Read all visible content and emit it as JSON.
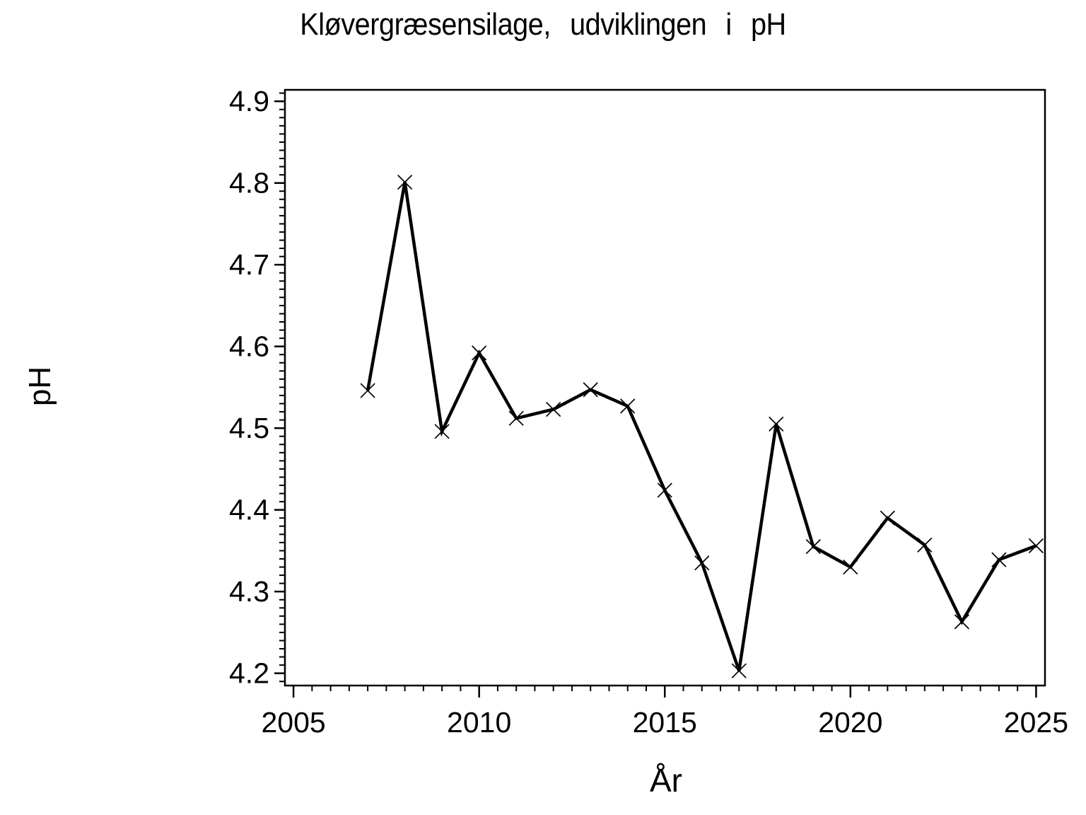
{
  "title": "Kløvergræsensilage, udviklingen i pH",
  "colors": {
    "foreground": "#000000",
    "background": "#FFFFFF"
  },
  "chart_data": {
    "type": "line",
    "title": "Kløvergræsensilage, udviklingen i pH",
    "xlabel": "År",
    "ylabel": "pH",
    "x": [
      2007,
      2008,
      2009,
      2010,
      2011,
      2012,
      2013,
      2014,
      2015,
      2016,
      2017,
      2018,
      2019,
      2020,
      2021,
      2022,
      2023,
      2024,
      2025
    ],
    "y": [
      4.546,
      4.801,
      4.496,
      4.592,
      4.512,
      4.523,
      4.547,
      4.527,
      4.424,
      4.335,
      4.203,
      4.505,
      4.355,
      4.33,
      4.39,
      4.357,
      4.263,
      4.339,
      4.356
    ],
    "series_name": "pH",
    "marker": "x",
    "line_color": "#000000",
    "marker_color": "#000000",
    "grid": false,
    "legend": "none",
    "xlim": [
      2004.77,
      2025.24
    ],
    "ylim": [
      4.185,
      4.914
    ],
    "x_major_ticks": [
      {
        "v": 2005,
        "label": "2005"
      },
      {
        "v": 2010,
        "label": "2010"
      },
      {
        "v": 2015,
        "label": "2015"
      },
      {
        "v": 2020,
        "label": "2020"
      },
      {
        "v": 2025,
        "label": "2025"
      }
    ],
    "x_minor_step": 0.5,
    "y_major_ticks": [
      {
        "v": 4.2,
        "label": "4.2"
      },
      {
        "v": 4.3,
        "label": "4.3"
      },
      {
        "v": 4.4,
        "label": "4.4"
      },
      {
        "v": 4.5,
        "label": "4.5"
      },
      {
        "v": 4.6,
        "label": "4.6"
      },
      {
        "v": 4.7,
        "label": "4.7"
      },
      {
        "v": 4.8,
        "label": "4.8"
      },
      {
        "v": 4.9,
        "label": "4.9"
      }
    ],
    "y_minor_step": 0.01
  }
}
